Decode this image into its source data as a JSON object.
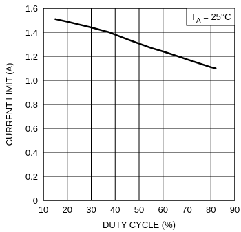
{
  "chart_data": {
    "type": "line",
    "title": "",
    "xlabel": "DUTY CYCLE (%)",
    "ylabel": "CURRENT LIMIT (A)",
    "xlim": [
      10,
      90
    ],
    "ylim": [
      0,
      1.6
    ],
    "x_ticks": [
      "10",
      "20",
      "30",
      "40",
      "50",
      "60",
      "70",
      "80",
      "90"
    ],
    "y_ticks": [
      "0",
      "0.2",
      "0.4",
      "0.6",
      "0.8",
      "1.0",
      "1.2",
      "1.4",
      "1.6"
    ],
    "grid": true,
    "annotation": {
      "main": "T",
      "sub": "A",
      "rest": " = 25°C"
    },
    "series": [
      {
        "x": [
          15,
          20,
          25,
          30,
          35,
          37.5,
          40,
          45,
          50,
          55,
          60,
          65,
          70,
          75,
          80,
          82
        ],
        "y": [
          1.51,
          1.488,
          1.464,
          1.44,
          1.413,
          1.4,
          1.38,
          1.342,
          1.305,
          1.27,
          1.24,
          1.208,
          1.175,
          1.142,
          1.11,
          1.1
        ]
      }
    ]
  }
}
